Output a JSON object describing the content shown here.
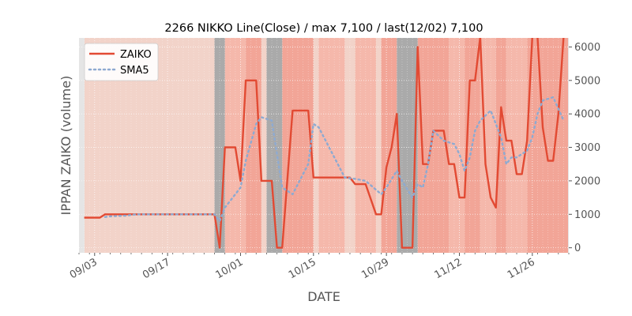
{
  "chart_data": {
    "type": "line",
    "title": "2266 NIKKO Line(Close) / max 7,100 / last(12/02) 7,100",
    "xlabel": "DATE",
    "ylabel": "IPPAN ZAIKO (volume)",
    "ylim": [
      -150,
      6270
    ],
    "yticks": [
      0,
      1000,
      2000,
      3000,
      4000,
      5000,
      6000
    ],
    "ytick_labels": [
      "0",
      "1000",
      "2000",
      "3000",
      "4000",
      "5000",
      "6000"
    ],
    "xlim": [
      "2024-08-31",
      "2024-12-03"
    ],
    "xticks": [
      "2024-09-03",
      "2024-09-17",
      "2024-10-01",
      "2024-10-15",
      "2024-10-29",
      "2024-11-12",
      "2024-11-26"
    ],
    "xtick_labels": [
      "09/03",
      "09/17",
      "10/01",
      "10/15",
      "10/29",
      "11/12",
      "11/26"
    ],
    "grid": true,
    "legend": "top-left",
    "series": [
      {
        "name": "ZAIKO",
        "color": "#e24a33",
        "style": "solid",
        "points": [
          [
            "2024-09-01",
            900
          ],
          [
            "2024-09-02",
            900
          ],
          [
            "2024-09-03",
            900
          ],
          [
            "2024-09-04",
            900
          ],
          [
            "2024-09-05",
            1000
          ],
          [
            "2024-09-06",
            1000
          ],
          [
            "2024-09-09",
            1000
          ],
          [
            "2024-09-10",
            1000
          ],
          [
            "2024-09-11",
            1000
          ],
          [
            "2024-09-12",
            1000
          ],
          [
            "2024-09-13",
            1000
          ],
          [
            "2024-09-16",
            1000
          ],
          [
            "2024-09-17",
            1000
          ],
          [
            "2024-09-18",
            1000
          ],
          [
            "2024-09-19",
            1000
          ],
          [
            "2024-09-20",
            1000
          ],
          [
            "2024-09-23",
            1000
          ],
          [
            "2024-09-24",
            1000
          ],
          [
            "2024-09-25",
            1000
          ],
          [
            "2024-09-26",
            1000
          ],
          [
            "2024-09-27",
            0
          ],
          [
            "2024-09-28",
            3000
          ],
          [
            "2024-09-30",
            3000
          ],
          [
            "2024-10-01",
            2000
          ],
          [
            "2024-10-02",
            5000
          ],
          [
            "2024-10-04",
            5000
          ],
          [
            "2024-10-05",
            2000
          ],
          [
            "2024-10-07",
            2000
          ],
          [
            "2024-10-08",
            0
          ],
          [
            "2024-10-09",
            0
          ],
          [
            "2024-10-11",
            4100
          ],
          [
            "2024-10-14",
            4100
          ],
          [
            "2024-10-15",
            2100
          ],
          [
            "2024-10-21",
            2100
          ],
          [
            "2024-10-22",
            2100
          ],
          [
            "2024-10-23",
            1900
          ],
          [
            "2024-10-25",
            1900
          ],
          [
            "2024-10-27",
            1000
          ],
          [
            "2024-10-28",
            1000
          ],
          [
            "2024-10-29",
            2400
          ],
          [
            "2024-10-30",
            3000
          ],
          [
            "2024-10-31",
            4000
          ],
          [
            "2024-11-01",
            0
          ],
          [
            "2024-11-03",
            0
          ],
          [
            "2024-11-04",
            6000
          ],
          [
            "2024-11-05",
            2500
          ],
          [
            "2024-11-06",
            2500
          ],
          [
            "2024-11-07",
            3500
          ],
          [
            "2024-11-09",
            3500
          ],
          [
            "2024-11-10",
            2500
          ],
          [
            "2024-11-11",
            2500
          ],
          [
            "2024-11-12",
            1500
          ],
          [
            "2024-11-13",
            1500
          ],
          [
            "2024-11-14",
            5000
          ],
          [
            "2024-11-15",
            5000
          ],
          [
            "2024-11-16",
            6300
          ],
          [
            "2024-11-17",
            2500
          ],
          [
            "2024-11-18",
            1500
          ],
          [
            "2024-11-19",
            1200
          ],
          [
            "2024-11-20",
            4200
          ],
          [
            "2024-11-21",
            3200
          ],
          [
            "2024-11-22",
            3200
          ],
          [
            "2024-11-23",
            2200
          ],
          [
            "2024-11-24",
            2200
          ],
          [
            "2024-11-25",
            3200
          ],
          [
            "2024-11-26",
            6300
          ],
          [
            "2024-11-27",
            6300
          ],
          [
            "2024-11-28",
            3600
          ],
          [
            "2024-11-29",
            2600
          ],
          [
            "2024-11-30",
            2600
          ],
          [
            "2024-12-01",
            4000
          ],
          [
            "2024-12-02",
            6300
          ]
        ]
      },
      {
        "name": "SMA5",
        "color": "#8eaad1",
        "style": "dotted",
        "points": [
          [
            "2024-09-05",
            920
          ],
          [
            "2024-09-06",
            940
          ],
          [
            "2024-09-09",
            960
          ],
          [
            "2024-09-10",
            980
          ],
          [
            "2024-09-11",
            1000
          ],
          [
            "2024-09-26",
            1000
          ],
          [
            "2024-09-27",
            800
          ],
          [
            "2024-09-28",
            1200
          ],
          [
            "2024-10-01",
            1800
          ],
          [
            "2024-10-02",
            2600
          ],
          [
            "2024-10-04",
            3700
          ],
          [
            "2024-10-05",
            3900
          ],
          [
            "2024-10-07",
            3800
          ],
          [
            "2024-10-08",
            2800
          ],
          [
            "2024-10-09",
            1800
          ],
          [
            "2024-10-11",
            1600
          ],
          [
            "2024-10-14",
            2500
          ],
          [
            "2024-10-15",
            3700
          ],
          [
            "2024-10-16",
            3600
          ],
          [
            "2024-10-21",
            2100
          ],
          [
            "2024-10-23",
            2060
          ],
          [
            "2024-10-25",
            2000
          ],
          [
            "2024-10-28",
            1600
          ],
          [
            "2024-10-29",
            1800
          ],
          [
            "2024-10-31",
            2300
          ],
          [
            "2024-11-01",
            2000
          ],
          [
            "2024-11-03",
            1500
          ],
          [
            "2024-11-04",
            1900
          ],
          [
            "2024-11-05",
            1800
          ],
          [
            "2024-11-06",
            2500
          ],
          [
            "2024-11-07",
            3500
          ],
          [
            "2024-11-09",
            3200
          ],
          [
            "2024-11-11",
            3100
          ],
          [
            "2024-11-12",
            2800
          ],
          [
            "2024-11-13",
            2300
          ],
          [
            "2024-11-14",
            2700
          ],
          [
            "2024-11-15",
            3500
          ],
          [
            "2024-11-16",
            3800
          ],
          [
            "2024-11-18",
            4100
          ],
          [
            "2024-11-19",
            3700
          ],
          [
            "2024-11-20",
            3300
          ],
          [
            "2024-11-21",
            2500
          ],
          [
            "2024-11-22",
            2700
          ],
          [
            "2024-11-23",
            2700
          ],
          [
            "2024-11-25",
            2900
          ],
          [
            "2024-11-26",
            3300
          ],
          [
            "2024-11-27",
            4000
          ],
          [
            "2024-11-28",
            4400
          ],
          [
            "2024-11-30",
            4500
          ],
          [
            "2024-12-02",
            3800
          ]
        ]
      }
    ],
    "background_bands": {
      "gray": [
        [
          "2024-09-26",
          "2024-09-28"
        ],
        [
          "2024-10-06",
          "2024-10-09"
        ],
        [
          "2024-10-31",
          "2024-11-04"
        ]
      ],
      "dark": [
        [
          "2024-10-02",
          "2024-10-05"
        ],
        [
          "2024-10-09",
          "2024-10-15"
        ],
        [
          "2024-10-28",
          "2024-10-31"
        ],
        [
          "2024-11-04",
          "2024-11-10"
        ],
        [
          "2024-11-13",
          "2024-11-16"
        ],
        [
          "2024-11-19",
          "2024-11-21"
        ],
        [
          "2024-11-25",
          "2024-12-03"
        ]
      ],
      "medium": [
        [
          "2024-09-28",
          "2024-10-02"
        ],
        [
          "2024-10-16",
          "2024-10-21"
        ],
        [
          "2024-10-23",
          "2024-10-27"
        ],
        [
          "2024-11-10",
          "2024-11-13"
        ],
        [
          "2024-11-16",
          "2024-11-19"
        ],
        [
          "2024-11-21",
          "2024-11-25"
        ]
      ]
    },
    "colors": {
      "axes_background": "#e5e5e5",
      "band_base": "#f2d3c9",
      "band_medium": "#f5b8ab",
      "band_dark": "#f2a597",
      "band_gray": "#aaaaaa",
      "grid": "#ffffff",
      "tick_label": "#555555"
    }
  }
}
